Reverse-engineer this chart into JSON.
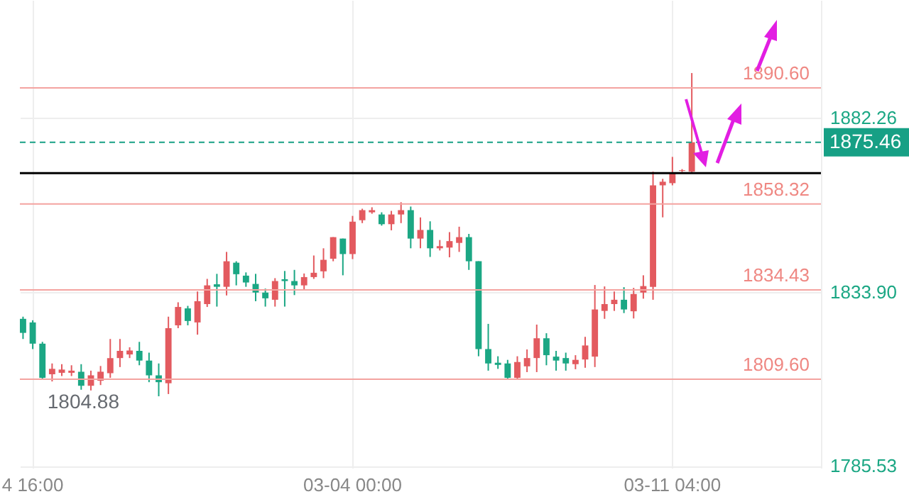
{
  "chart_data": {
    "type": "candlestick",
    "categories": [
      null,
      "4 16:00",
      null,
      null,
      null,
      null,
      null,
      null,
      null,
      null,
      null,
      null,
      null,
      null,
      null,
      null,
      null,
      null,
      null,
      null,
      null,
      null,
      null,
      null,
      null,
      null,
      null,
      null,
      null,
      null,
      null,
      null,
      null,
      null,
      "03-04 00:00",
      null,
      null,
      null,
      null,
      null,
      null,
      null,
      null,
      null,
      null,
      null,
      null,
      null,
      null,
      null,
      null,
      null,
      null,
      null,
      null,
      null,
      null,
      null,
      null,
      null,
      null,
      null,
      null,
      null,
      null,
      null,
      null,
      "03-11 04:00",
      null,
      null,
      null,
      null,
      null,
      null,
      null,
      null,
      null,
      null,
      null,
      null,
      null,
      null,
      null
    ],
    "ohlc": [
      [
        1826.4,
        1827,
        1820.8,
        1822.5
      ],
      [
        1825.4,
        1826,
        1818,
        1819.5
      ],
      [
        1819.5,
        1820,
        1809.5,
        1810
      ],
      [
        1811,
        1814,
        1809,
        1812.5
      ],
      [
        1811.4,
        1813.8,
        1810.5,
        1812.3
      ],
      [
        1811.4,
        1813.5,
        1810.5,
        1812
      ],
      [
        1811.7,
        1813.8,
        1806.7,
        1807.8
      ],
      [
        1807.8,
        1812,
        1806.5,
        1810.7
      ],
      [
        1809.2,
        1813.3,
        1808,
        1811.7
      ],
      [
        1811.3,
        1820.8,
        1810,
        1815.5
      ],
      [
        1815.5,
        1820.8,
        1813,
        1817.5
      ],
      [
        1816.5,
        1818.5,
        1815.5,
        1817.6
      ],
      [
        1817.5,
        1820,
        1813.5,
        1814.8
      ],
      [
        1814.8,
        1817,
        1808.8,
        1810.7
      ],
      [
        1810.7,
        1814,
        1804.88,
        1808.8
      ],
      [
        1808.5,
        1827,
        1805.5,
        1823.8
      ],
      [
        1824.6,
        1831,
        1823.8,
        1829.7
      ],
      [
        1829.3,
        1830,
        1824.6,
        1825.8
      ],
      [
        1825.4,
        1834,
        1822,
        1831.3
      ],
      [
        1830.5,
        1837.5,
        1829.7,
        1835.7
      ],
      [
        1836,
        1838.9,
        1829.8,
        1835.3
      ],
      [
        1835.3,
        1845,
        1832.9,
        1842.4
      ],
      [
        1842,
        1842.4,
        1835.7,
        1838.8
      ],
      [
        1838.4,
        1839.3,
        1835.3,
        1836.5
      ],
      [
        1836.1,
        1838.9,
        1831.3,
        1833.7
      ],
      [
        1833.7,
        1834.8,
        1829.8,
        1832.1
      ],
      [
        1831.7,
        1837.7,
        1829.8,
        1836.9
      ],
      [
        1837.4,
        1839.7,
        1829.8,
        1836.9
      ],
      [
        1836.9,
        1840,
        1833,
        1835.7
      ],
      [
        1835.7,
        1839,
        1834.4,
        1838
      ],
      [
        1838,
        1844,
        1837.5,
        1839.2
      ],
      [
        1839.6,
        1846,
        1837.7,
        1842.8
      ],
      [
        1843.1,
        1849.1,
        1842.4,
        1849.1
      ],
      [
        1848.7,
        1848.7,
        1838.5,
        1844.4
      ],
      [
        1844.4,
        1855,
        1843,
        1853.4
      ],
      [
        1853.8,
        1857,
        1853,
        1856.6
      ],
      [
        1856,
        1857.4,
        1855.6,
        1856.6
      ],
      [
        1855.4,
        1856,
        1852.3,
        1852.7
      ],
      [
        1852.7,
        1856.4,
        1851,
        1855.4
      ],
      [
        1855.4,
        1858.8,
        1853,
        1856.6
      ],
      [
        1856.6,
        1857.6,
        1846,
        1848.7
      ],
      [
        1848.7,
        1854.6,
        1846,
        1851.1
      ],
      [
        1851.1,
        1853.5,
        1843.6,
        1846
      ],
      [
        1846,
        1848.3,
        1845.4,
        1846.6
      ],
      [
        1846.2,
        1850.5,
        1843.5,
        1848
      ],
      [
        1847.5,
        1852,
        1845,
        1849.1
      ],
      [
        1849.1,
        1850,
        1840,
        1842.4
      ],
      [
        1842.4,
        1842.4,
        1816,
        1818
      ],
      [
        1818,
        1825,
        1812,
        1814
      ],
      [
        1814.2,
        1816,
        1812.5,
        1813.6
      ],
      [
        1814,
        1815,
        1809.8,
        1810
      ],
      [
        1810,
        1816,
        1809.8,
        1814.4
      ],
      [
        1813.2,
        1817.9,
        1811.6,
        1815.5
      ],
      [
        1815.5,
        1824.8,
        1811.6,
        1821
      ],
      [
        1821,
        1822.4,
        1813.5,
        1816.3
      ],
      [
        1815.9,
        1817.5,
        1812,
        1814.8
      ],
      [
        1815.5,
        1817,
        1812,
        1814
      ],
      [
        1813.8,
        1816.3,
        1812.4,
        1815
      ],
      [
        1815.1,
        1821.4,
        1812.8,
        1819
      ],
      [
        1815.9,
        1835.8,
        1813,
        1829
      ],
      [
        1828.6,
        1835.4,
        1826.4,
        1830.5
      ],
      [
        1830.5,
        1834,
        1828.6,
        1831.7
      ],
      [
        1831.7,
        1835.2,
        1828,
        1829
      ],
      [
        1828.5,
        1835,
        1826.5,
        1833.3
      ],
      [
        1833.7,
        1838.5,
        1832,
        1835.5
      ],
      [
        1835.3,
        1867.3,
        1831.7,
        1863.5
      ],
      [
        1863.5,
        1865.3,
        1854.6,
        1864.5
      ],
      [
        1864.1,
        1871.4,
        1863.5,
        1866.9
      ],
      [
        1867.5,
        1868,
        1867.2,
        1867.7
      ],
      [
        1867.3,
        1894.7,
        1866.9,
        1875.46
      ],
      null,
      null,
      null,
      null,
      null,
      null,
      null,
      null,
      null,
      null,
      null,
      null,
      null
    ],
    "ylim": [
      1785,
      1915
    ],
    "yticks": [
      1785.53,
      {
        "value": 1833.9,
        "label": "1833.90"
      },
      1882.26
    ],
    "grid": true,
    "ref_lines": [
      {
        "axis": "y",
        "value": 1890.6,
        "label": "1890.60",
        "color": "#f4a3a0"
      },
      {
        "axis": "y",
        "value": 1858.32,
        "label": "1858.32",
        "color": "#f4a3a0"
      },
      {
        "axis": "y",
        "value": 1834.43,
        "label": "1834.43",
        "color": "#f4a3a0"
      },
      {
        "axis": "y",
        "value": 1809.6,
        "label": "1809.60",
        "color": "#f4a3a0"
      },
      {
        "axis": "y",
        "value": 1875.46,
        "label": "1875.46",
        "color": "#17a085",
        "line_style": "dashed"
      },
      {
        "axis": "y",
        "value": 1866.9,
        "color": "#000000"
      }
    ],
    "annotations": [
      "1804.88"
    ]
  }
}
